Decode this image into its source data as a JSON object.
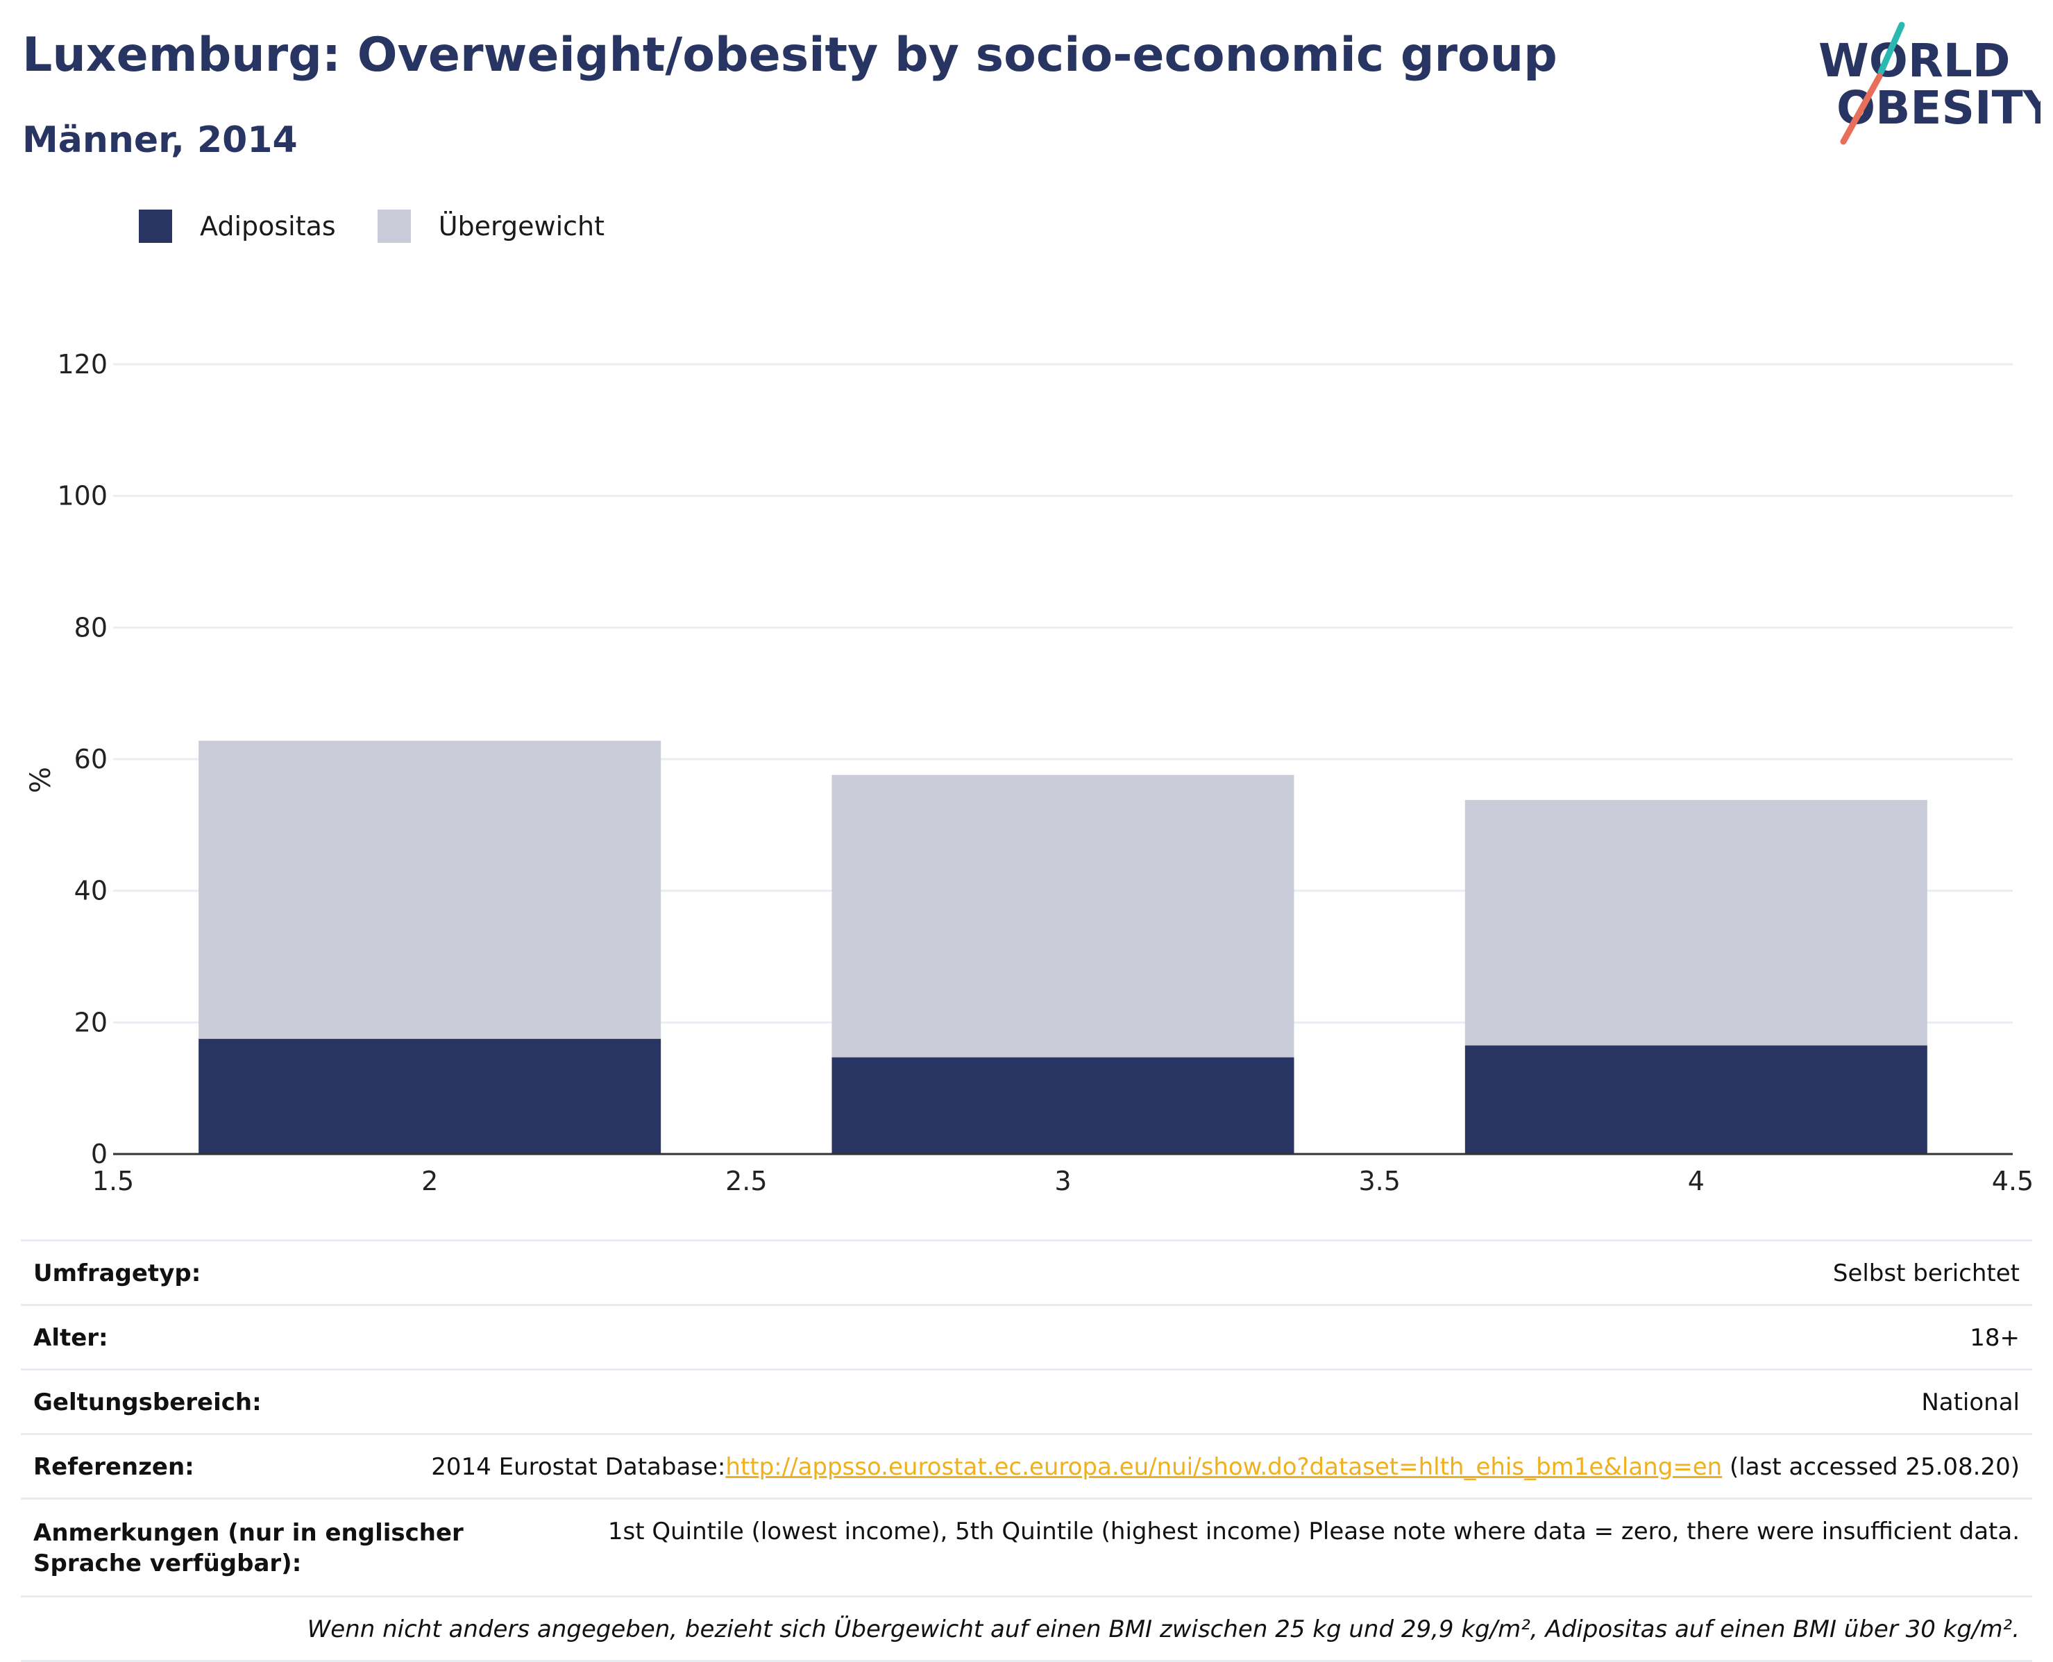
{
  "header": {
    "title": "Luxemburg: Overweight/obesity by socio-economic group",
    "subtitle": "Männer, 2014"
  },
  "logo": {
    "line1": "WORLD",
    "line2": "OBESITY"
  },
  "legend": [
    {
      "label": "Adipositas",
      "color": "#283562"
    },
    {
      "label": "Übergewicht",
      "color": "#c9ccd8"
    }
  ],
  "chart_data": {
    "type": "bar",
    "stacked": true,
    "x": [
      2,
      3,
      4
    ],
    "bar_width": 0.73,
    "series": [
      {
        "name": "Adipositas",
        "values": [
          17.5,
          14.7,
          16.5
        ],
        "color": "#283562"
      },
      {
        "name": "Übergewicht",
        "values": [
          45.3,
          42.9,
          37.3
        ],
        "color": "#c9ccd8"
      }
    ],
    "xlim": [
      1.5,
      4.5
    ],
    "ylim": [
      0,
      120
    ],
    "xticks": [
      "1.5",
      "2",
      "2.5",
      "3",
      "3.5",
      "4",
      "4.5"
    ],
    "yticks": [
      "0",
      "20",
      "40",
      "60",
      "80",
      "100",
      "120"
    ],
    "ylabel": "%",
    "xlabel": "",
    "grid": true
  },
  "info_table": {
    "survey_type": {
      "label": "Umfragetyp:",
      "value": "Selbst berichtet"
    },
    "age": {
      "label": "Alter:",
      "value": "18+"
    },
    "coverage": {
      "label": "Geltungsbereich:",
      "value": "National"
    },
    "references": {
      "label": "Referenzen:",
      "prefix": "2014 Eurostat Database:",
      "link": "http://appsso.eurostat.ec.europa.eu/nui/show.do?dataset=hlth_ehis_bm1e&lang=en",
      "suffix": " (last accessed 25.08.20)"
    },
    "notes": {
      "label": "Anmerkungen (nur in englischer Sprache verfügbar):",
      "value": "1st Quintile (lowest income), 5th Quintile (highest income) Please note where data = zero, there were insufficient data."
    },
    "footnote": "Wenn nicht anders angegeben, bezieht sich Übergewicht auf einen BMI zwischen 25 kg und 29,9 kg/m², Adipositas auf einen BMI über 30 kg/m²."
  }
}
